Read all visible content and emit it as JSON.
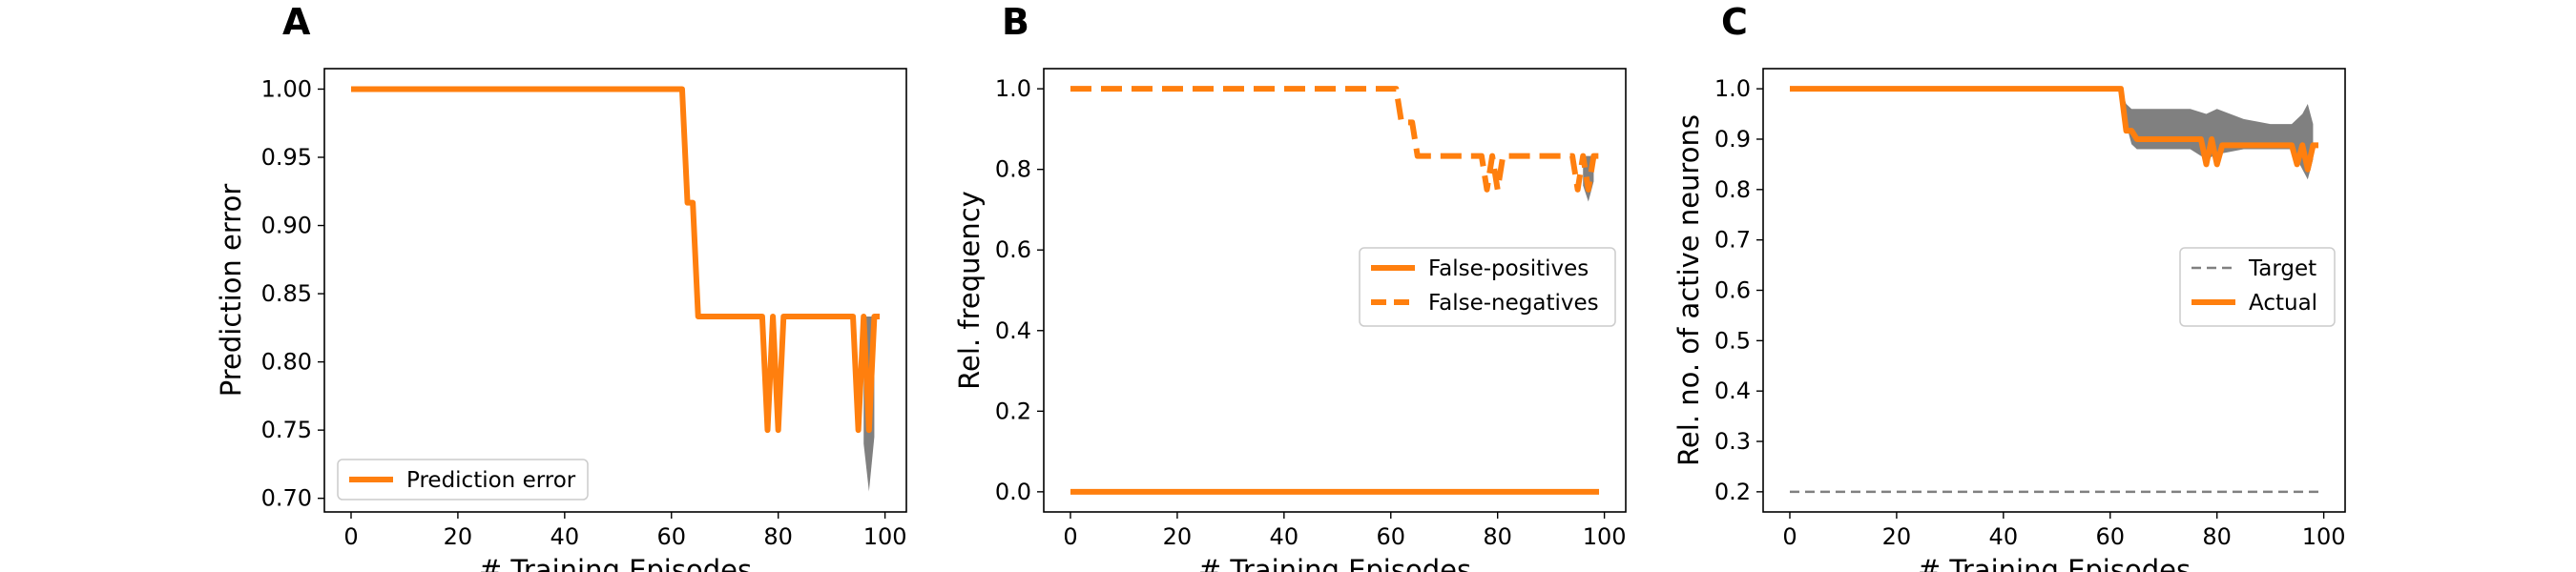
{
  "figure": {
    "panels": [
      "A",
      "B",
      "C"
    ]
  },
  "chart_data": [
    {
      "type": "line",
      "panel_label": "A",
      "xlabel": "# Training Episodes",
      "ylabel": "Prediction error",
      "xlim": [
        -5,
        104
      ],
      "ylim": [
        0.69,
        1.015
      ],
      "xticks": [
        0,
        20,
        40,
        60,
        80,
        100
      ],
      "yticks": [
        0.7,
        0.75,
        0.8,
        0.85,
        0.9,
        0.95,
        1.0
      ],
      "ytick_labels": [
        "0.70",
        "0.75",
        "0.80",
        "0.85",
        "0.90",
        "0.95",
        "1.00"
      ],
      "legend_position": "lower left",
      "series": [
        {
          "name": "Prediction error",
          "style": "solid",
          "color": "#ff7f0e",
          "x": [
            0,
            62,
            63,
            64,
            65,
            77,
            78,
            79,
            80,
            81,
            94,
            95,
            96,
            97,
            98,
            99
          ],
          "y": [
            1.0,
            1.0,
            0.9167,
            0.9167,
            0.8333,
            0.8333,
            0.75,
            0.8333,
            0.75,
            0.8333,
            0.8333,
            0.75,
            0.8333,
            0.75,
            0.8333,
            0.8333
          ]
        }
      ],
      "shaded_band": {
        "color": "#808080",
        "x": [
          96,
          97,
          98
        ],
        "upper": [
          0.8333,
          0.8333,
          0.8333
        ],
        "lower": [
          0.74,
          0.705,
          0.745
        ]
      }
    },
    {
      "type": "line",
      "panel_label": "B",
      "xlabel": "# Training Episodes",
      "ylabel": "Rel. frequency",
      "xlim": [
        -5,
        104
      ],
      "ylim": [
        -0.05,
        1.05
      ],
      "xticks": [
        0,
        20,
        40,
        60,
        80,
        100
      ],
      "yticks": [
        0.0,
        0.2,
        0.4,
        0.6,
        0.8,
        1.0
      ],
      "ytick_labels": [
        "0.0",
        "0.2",
        "0.4",
        "0.6",
        "0.8",
        "1.0"
      ],
      "legend_position": "center right",
      "series": [
        {
          "name": "False-positives",
          "style": "solid",
          "color": "#ff7f0e",
          "x": [
            0,
            99
          ],
          "y": [
            0.0,
            0.0
          ]
        },
        {
          "name": "False-negatives",
          "style": "dashed",
          "color": "#ff7f0e",
          "x": [
            0,
            61,
            62,
            63,
            64,
            65,
            77,
            78,
            79,
            80,
            81,
            94,
            95,
            96,
            97,
            98,
            99
          ],
          "y": [
            1.0,
            1.0,
            0.9167,
            0.9167,
            0.9167,
            0.8333,
            0.8333,
            0.75,
            0.8333,
            0.75,
            0.8333,
            0.8333,
            0.75,
            0.8333,
            0.75,
            0.8333,
            0.8333
          ]
        }
      ],
      "shaded_band": {
        "color": "#808080",
        "x": [
          96,
          97,
          98
        ],
        "upper": [
          0.8333,
          0.8333,
          0.8333
        ],
        "lower": [
          0.76,
          0.72,
          0.77
        ]
      }
    },
    {
      "type": "line",
      "panel_label": "C",
      "xlabel": "# Training Episodes",
      "ylabel": "Rel. no. of active neurons",
      "xlim": [
        -5,
        104
      ],
      "ylim": [
        0.16,
        1.04
      ],
      "xticks": [
        0,
        20,
        40,
        60,
        80,
        100
      ],
      "yticks": [
        0.2,
        0.3,
        0.4,
        0.5,
        0.6,
        0.7,
        0.8,
        0.9,
        1.0
      ],
      "ytick_labels": [
        "0.2",
        "0.3",
        "0.4",
        "0.5",
        "0.6",
        "0.7",
        "0.8",
        "0.9",
        "1.0"
      ],
      "legend_position": "center right",
      "series": [
        {
          "name": "Target",
          "style": "dashed-thin",
          "color": "#808080",
          "x": [
            0,
            99
          ],
          "y": [
            0.2,
            0.2
          ]
        },
        {
          "name": "Actual",
          "style": "solid",
          "color": "#ff7f0e",
          "x": [
            0,
            62,
            63,
            64,
            65,
            77,
            78,
            79,
            80,
            81,
            94,
            95,
            96,
            97,
            98,
            99
          ],
          "y": [
            1.0,
            1.0,
            0.9167,
            0.9167,
            0.9,
            0.9,
            0.85,
            0.9,
            0.85,
            0.888,
            0.888,
            0.85,
            0.888,
            0.84,
            0.888,
            0.888
          ]
        }
      ],
      "shaded_band": {
        "color": "#808080",
        "x": [
          62,
          63,
          64,
          65,
          70,
          75,
          78,
          80,
          85,
          90,
          94,
          96,
          97,
          98
        ],
        "upper": [
          1.0,
          0.97,
          0.96,
          0.96,
          0.96,
          0.96,
          0.95,
          0.96,
          0.94,
          0.93,
          0.93,
          0.95,
          0.97,
          0.93
        ],
        "lower": [
          1.0,
          0.93,
          0.89,
          0.88,
          0.88,
          0.88,
          0.86,
          0.87,
          0.88,
          0.88,
          0.88,
          0.84,
          0.82,
          0.86
        ]
      }
    }
  ]
}
